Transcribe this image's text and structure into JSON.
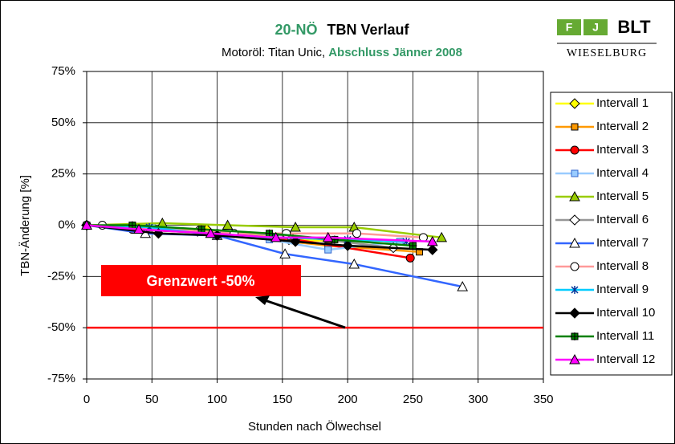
{
  "chart_data": {
    "type": "line",
    "title_prefix": "20-NÖ",
    "title": "TBN Verlauf",
    "subtitle": "Motoröl: Titan Unic,",
    "subtitle_highlight": "Abschluss Jänner 2008",
    "highlight_color": "#339966",
    "logo": {
      "letters": [
        "F",
        "J"
      ],
      "name": "BLT",
      "place": "WIESELBURG"
    },
    "y_label": "TBN-Änderung [%]",
    "x_label": "Stunden nach Ölwechsel",
    "xlim": [
      0,
      350
    ],
    "xticks": [
      0,
      50,
      100,
      150,
      200,
      250,
      300,
      350
    ],
    "ylim": [
      -75,
      75
    ],
    "yticks": [
      {
        "value": -75,
        "label": "-75%"
      },
      {
        "value": -50,
        "label": "-50%"
      },
      {
        "value": -25,
        "label": "-25%"
      },
      {
        "value": 0,
        "label": "0%"
      },
      {
        "value": 25,
        "label": "25%"
      },
      {
        "value": 50,
        "label": "50%"
      },
      {
        "value": 75,
        "label": "75%"
      }
    ],
    "grid": true,
    "legend": "right",
    "limit": {
      "value": -50,
      "label": "Grenzwert -50%",
      "color": "#ff0000"
    },
    "series": [
      {
        "name": "Intervall 1",
        "color": "#ffff00",
        "marker": "diamond",
        "marker_fill": "#ffff00",
        "x": [
          0,
          92,
          155,
          200
        ],
        "values": [
          0,
          -2,
          -7,
          -8
        ]
      },
      {
        "name": "Intervall 2",
        "color": "#ff9900",
        "marker": "square",
        "marker_fill": "#ff9900",
        "x": [
          0,
          35,
          100,
          185,
          255
        ],
        "values": [
          0,
          -1,
          -4,
          -10,
          -13
        ]
      },
      {
        "name": "Intervall 3",
        "color": "#ff0000",
        "marker": "circle",
        "marker_fill": "#ff0000",
        "x": [
          0,
          35,
          100,
          160,
          248
        ],
        "values": [
          0,
          -2,
          -4,
          -7,
          -16
        ]
      },
      {
        "name": "Intervall 4",
        "color": "#99ccff",
        "marker": "x",
        "marker_fill": "#99ccff",
        "x": [
          0,
          50,
          140,
          185,
          240
        ],
        "values": [
          0,
          -1,
          -7,
          -12,
          -8
        ]
      },
      {
        "name": "Intervall 5",
        "color": "#99cc00",
        "marker": "triangle",
        "marker_fill": "#99cc00",
        "x": [
          0,
          58,
          108,
          160,
          205,
          272
        ],
        "values": [
          0,
          1,
          0,
          -1,
          -1,
          -6
        ]
      },
      {
        "name": "Intervall 6",
        "color": "#969696",
        "marker": "diamond",
        "marker_fill": "#ffffff",
        "x": [
          0,
          85,
          155,
          235
        ],
        "values": [
          0,
          -3,
          -5,
          -11
        ]
      },
      {
        "name": "Intervall 7",
        "color": "#3366ff",
        "marker": "triangle",
        "marker_fill": "#ffffff",
        "x": [
          0,
          45,
          100,
          152,
          205,
          288
        ],
        "values": [
          0,
          -4,
          -5,
          -14,
          -19,
          -30
        ]
      },
      {
        "name": "Intervall 8",
        "color": "#ff9999",
        "marker": "circle",
        "marker_fill": "#ffffff",
        "x": [
          0,
          12,
          113,
          153,
          207,
          258
        ],
        "values": [
          0,
          0,
          -4,
          -4,
          -4,
          -6
        ]
      },
      {
        "name": "Intervall 9",
        "color": "#00ccff",
        "marker": "star",
        "marker_fill": "#00ccff",
        "x": [
          0,
          48,
          100,
          145,
          200,
          245
        ],
        "values": [
          0,
          -1,
          -5,
          -6,
          -7,
          -8
        ]
      },
      {
        "name": "Intervall 10",
        "color": "#000000",
        "marker": "diamond",
        "marker_fill": "#000000",
        "x": [
          0,
          55,
          100,
          160,
          200,
          265
        ],
        "values": [
          0,
          -4,
          -5,
          -8,
          -10,
          -12
        ]
      },
      {
        "name": "Intervall 11",
        "color": "#008000",
        "marker": "plus",
        "marker_fill": "#008000",
        "x": [
          0,
          35,
          88,
          140,
          190,
          250
        ],
        "values": [
          0,
          0,
          -2,
          -4,
          -7,
          -10
        ]
      },
      {
        "name": "Intervall 12",
        "color": "#ff00ff",
        "marker": "triangle",
        "marker_fill": "#ff00ff",
        "x": [
          0,
          40,
          95,
          145,
          185,
          265
        ],
        "values": [
          0,
          -2,
          -4,
          -6,
          -6,
          -8
        ]
      }
    ]
  }
}
